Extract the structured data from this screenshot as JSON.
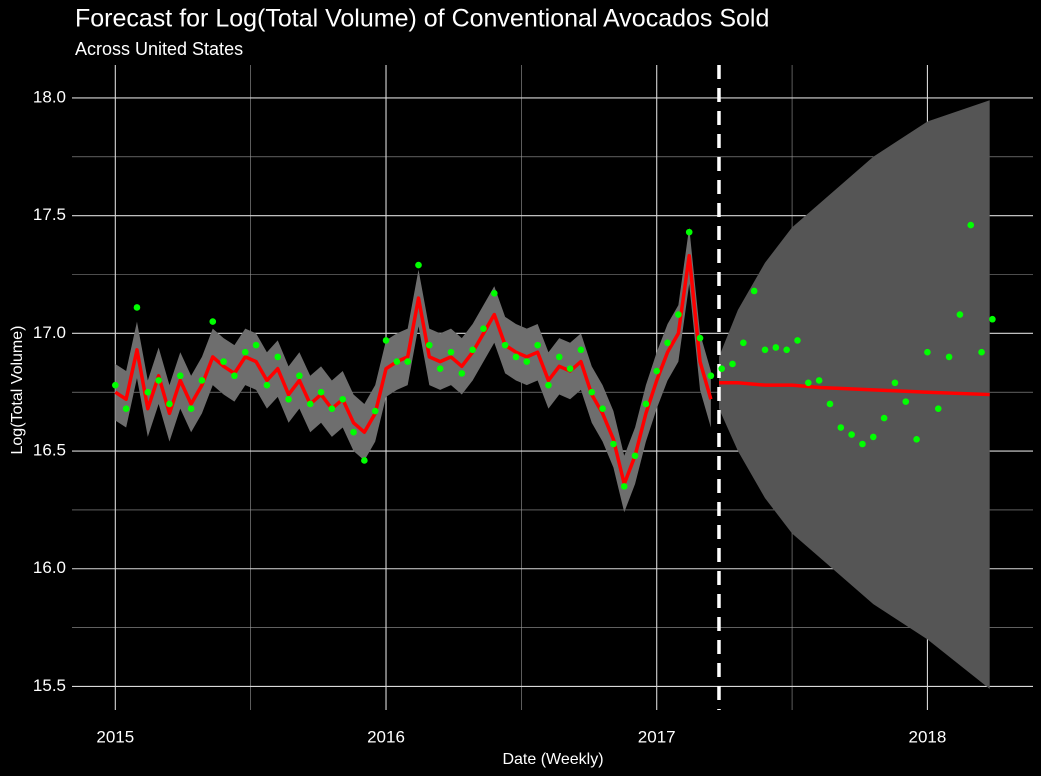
{
  "chart_data": {
    "type": "line",
    "title": "Forecast for Log(Total Volume) of Conventional Avocados Sold",
    "subtitle": "Across United States",
    "x_label": "Date (Weekly)",
    "y_label": "Log(Total Volume)",
    "background": "#000000",
    "grid": true,
    "xlim": [
      2014.84,
      2018.39
    ],
    "ylim": [
      15.4,
      18.14
    ],
    "xticks": [
      2015,
      2016,
      2017,
      2018
    ],
    "x_minor_ticks": [
      2015.5,
      2016.5,
      2017.5
    ],
    "yticks": [
      {
        "value": 15.5,
        "label": "15.5"
      },
      {
        "value": 16,
        "label": "16.0"
      },
      {
        "value": 16.5,
        "label": "16.5"
      },
      {
        "value": 17,
        "label": "17.0"
      },
      {
        "value": 17.5,
        "label": "17.5"
      },
      {
        "value": 18,
        "label": "18.0"
      }
    ],
    "y_minor_ticks": [
      15.75,
      16.25,
      16.75,
      17.25,
      17.75
    ],
    "observed": {
      "color": "#00ff00",
      "x": [
        2015.0,
        2015.04,
        2015.08,
        2015.12,
        2015.16,
        2015.2,
        2015.24,
        2015.28,
        2015.32,
        2015.36,
        2015.4,
        2015.44,
        2015.48,
        2015.52,
        2015.56,
        2015.6,
        2015.64,
        2015.68,
        2015.72,
        2015.76,
        2015.8,
        2015.84,
        2015.88,
        2015.92,
        2015.96,
        2016.0,
        2016.04,
        2016.08,
        2016.12,
        2016.16,
        2016.2,
        2016.24,
        2016.28,
        2016.32,
        2016.36,
        2016.4,
        2016.44,
        2016.48,
        2016.52,
        2016.56,
        2016.6,
        2016.64,
        2016.68,
        2016.72,
        2016.76,
        2016.8,
        2016.84,
        2016.88,
        2016.92,
        2016.96,
        2017.0,
        2017.04,
        2017.08,
        2017.12,
        2017.16,
        2017.2,
        2017.24,
        2017.28,
        2017.32,
        2017.36,
        2017.4,
        2017.44,
        2017.48,
        2017.52,
        2017.56,
        2017.6,
        2017.64,
        2017.68,
        2017.72,
        2017.76,
        2017.8,
        2017.84,
        2017.88,
        2017.92,
        2017.96,
        2018.0,
        2018.04,
        2018.08,
        2018.12,
        2018.16,
        2018.2,
        2018.24
      ],
      "values": [
        16.78,
        16.68,
        17.11,
        16.75,
        16.8,
        16.7,
        16.82,
        16.68,
        16.8,
        17.05,
        16.88,
        16.82,
        16.92,
        16.95,
        16.78,
        16.9,
        16.72,
        16.82,
        16.7,
        16.75,
        16.68,
        16.72,
        16.58,
        16.46,
        16.67,
        16.97,
        16.88,
        16.88,
        17.29,
        16.95,
        16.85,
        16.92,
        16.83,
        16.93,
        17.02,
        17.17,
        16.95,
        16.9,
        16.88,
        16.95,
        16.78,
        16.9,
        16.85,
        16.93,
        16.75,
        16.68,
        16.53,
        16.35,
        16.48,
        16.7,
        16.84,
        16.96,
        17.08,
        17.43,
        16.98,
        16.82,
        16.85,
        16.87,
        16.96,
        17.18,
        16.93,
        16.94,
        16.93,
        16.97,
        16.79,
        16.8,
        16.7,
        16.6,
        16.57,
        16.53,
        16.56,
        16.64,
        16.79,
        16.71,
        16.55,
        16.92,
        16.68,
        16.9,
        17.08,
        17.46,
        16.92,
        17.06
      ]
    },
    "fitted": {
      "color": "#ff0000",
      "band": 0.12,
      "band_color": "#6e6e6e",
      "values": [
        16.75,
        16.72,
        16.93,
        16.68,
        16.82,
        16.66,
        16.8,
        16.7,
        16.78,
        16.9,
        16.86,
        16.83,
        16.9,
        16.88,
        16.8,
        16.85,
        16.74,
        16.8,
        16.7,
        16.74,
        16.68,
        16.72,
        16.62,
        16.58,
        16.66,
        16.85,
        16.88,
        16.9,
        17.15,
        16.9,
        16.88,
        16.9,
        16.86,
        16.92,
        17.0,
        17.08,
        16.95,
        16.92,
        16.9,
        16.92,
        16.8,
        16.86,
        16.84,
        16.88,
        16.74,
        16.66,
        16.55,
        16.36,
        16.48,
        16.66,
        16.8,
        16.92,
        17.0,
        17.33,
        16.88,
        16.72
      ]
    },
    "forecast": {
      "color": "#ff0000",
      "band_color": "#555555",
      "x": [
        2017.23,
        2017.3,
        2017.4,
        2017.5,
        2017.6,
        2017.8,
        2018.0,
        2018.23
      ],
      "values": [
        16.79,
        16.79,
        16.78,
        16.78,
        16.77,
        16.76,
        16.75,
        16.74
      ],
      "lower": [
        16.68,
        16.5,
        16.3,
        16.15,
        16.05,
        15.85,
        15.7,
        15.49
      ],
      "upper": [
        16.9,
        17.1,
        17.3,
        17.45,
        17.55,
        17.75,
        17.9,
        17.99
      ]
    },
    "vline": {
      "x": 2017.23,
      "color": "#ffffff"
    }
  }
}
